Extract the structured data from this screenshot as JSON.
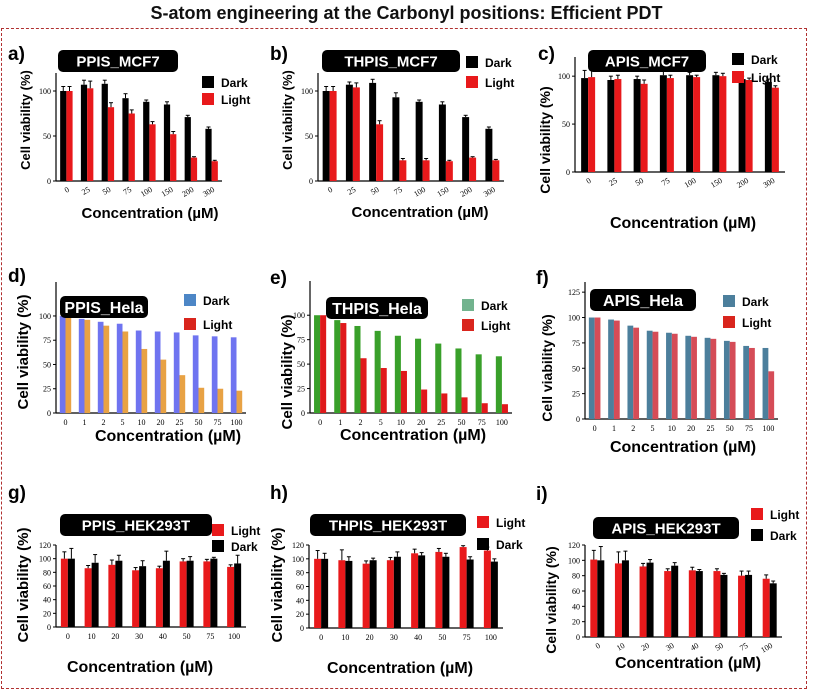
{
  "title": "S-atom engineering at the Carbonyl  positions: Efficient PDT",
  "chart_data": [
    {
      "id": "a",
      "type": "bar",
      "letter": "a)",
      "name": "PPIS_MCF7",
      "ylabel": "Cell viability (%)",
      "xlabel": "Concentration (µM)",
      "categories": [
        "0",
        "25",
        "50",
        "75",
        "100",
        "150",
        "200",
        "300"
      ],
      "yticks": [
        0,
        50,
        100
      ],
      "ylim": [
        0,
        120
      ],
      "colors": [
        "#000000",
        "#e8191b"
      ],
      "error_bars": true,
      "series": [
        {
          "name": "Dark",
          "values": [
            100,
            107,
            108,
            92,
            88,
            85,
            71,
            58
          ],
          "errors": [
            5,
            5,
            4,
            5,
            2,
            3,
            2,
            2
          ]
        },
        {
          "name": "Light",
          "values": [
            100,
            103,
            82,
            75,
            63,
            52,
            26,
            22
          ],
          "errors": [
            5,
            8,
            5,
            4,
            3,
            3,
            1,
            1
          ]
        }
      ]
    },
    {
      "id": "b",
      "type": "bar",
      "letter": "b)",
      "name": "THPIS_MCF7",
      "ylabel": "Cell viability (%)",
      "xlabel": "Concentration (µM)",
      "categories": [
        "0",
        "25",
        "50",
        "75",
        "100",
        "150",
        "200",
        "300"
      ],
      "yticks": [
        0,
        50,
        100
      ],
      "ylim": [
        0,
        120
      ],
      "colors": [
        "#000000",
        "#e8191b"
      ],
      "error_bars": true,
      "series": [
        {
          "name": "Dark",
          "values": [
            100,
            107,
            109,
            93,
            88,
            85,
            71,
            58
          ],
          "errors": [
            5,
            3,
            4,
            5,
            2,
            3,
            2,
            2
          ]
        },
        {
          "name": "Light",
          "values": [
            100,
            104,
            63,
            23,
            23,
            22,
            26,
            23
          ],
          "errors": [
            5,
            5,
            4,
            2,
            2,
            1,
            1,
            1
          ]
        }
      ]
    },
    {
      "id": "c",
      "type": "bar",
      "letter": "c)",
      "name": "APIS_MCF7",
      "ylabel": "Cell viability (%)",
      "xlabel": "Concentration (µM)",
      "categories": [
        "0",
        "25",
        "50",
        "75",
        "100",
        "150",
        "200",
        "300"
      ],
      "yticks": [
        0,
        50,
        100
      ],
      "ylim": [
        0,
        120
      ],
      "colors": [
        "#000000",
        "#e8191b"
      ],
      "error_bars": true,
      "series": [
        {
          "name": "Dark",
          "values": [
            98,
            96,
            97,
            101,
            101,
            101,
            97,
            94
          ],
          "errors": [
            8,
            4,
            3,
            4,
            3,
            3,
            3,
            3
          ]
        },
        {
          "name": "Light",
          "values": [
            99,
            97,
            92,
            98,
            99,
            100,
            96,
            88
          ],
          "errors": [
            7,
            4,
            4,
            3,
            2,
            3,
            2,
            2
          ]
        }
      ]
    },
    {
      "id": "d",
      "type": "bar",
      "letter": "d)",
      "name": "PPIS_Hela",
      "ylabel": "Cell viability (%)",
      "xlabel": "Concentration (µM)",
      "categories": [
        "0",
        "1",
        "2",
        "5",
        "10",
        "20",
        "25",
        "50",
        "75",
        "100"
      ],
      "yticks": [
        0,
        25,
        50,
        75,
        100
      ],
      "ylim": [
        0,
        135
      ],
      "colors": [
        "#6f74f0",
        "#e8a244"
      ],
      "legend_colors": [
        "#4d86c6",
        "#d9251d"
      ],
      "error_bars": false,
      "series": [
        {
          "name": "Dark",
          "values": [
            100,
            97,
            94,
            92,
            85,
            84,
            83,
            80,
            79,
            78
          ]
        },
        {
          "name": "Light",
          "values": [
            100,
            96,
            90,
            84,
            66,
            55,
            39,
            26,
            25,
            23
          ]
        }
      ]
    },
    {
      "id": "e",
      "type": "bar",
      "letter": "e)",
      "name": "THPIS_Hela",
      "ylabel": "Cell viability (%)",
      "xlabel": "Concentration (µM)",
      "categories": [
        "0",
        "1",
        "2",
        "5",
        "10",
        "20",
        "25",
        "50",
        "75",
        "100"
      ],
      "yticks": [
        0,
        25,
        50,
        75,
        100
      ],
      "ylim": [
        0,
        135
      ],
      "colors": [
        "#39a02a",
        "#e0191b"
      ],
      "legend_colors": [
        "#72b38e",
        "#d9251d"
      ],
      "error_bars": false,
      "series": [
        {
          "name": "Dark",
          "values": [
            100,
            95,
            89,
            84,
            79,
            76,
            71,
            66,
            60,
            58
          ]
        },
        {
          "name": "Light",
          "values": [
            100,
            92,
            56,
            46,
            43,
            24,
            20,
            16,
            10,
            9
          ]
        }
      ]
    },
    {
      "id": "f",
      "type": "bar",
      "letter": "f)",
      "name": "APIS_Hela",
      "ylabel": "Cell viability (%)",
      "xlabel": "Concentration (µM)",
      "categories": [
        "0",
        "1",
        "2",
        "5",
        "10",
        "20",
        "25",
        "50",
        "75",
        "100"
      ],
      "yticks": [
        0,
        25,
        50,
        75,
        100,
        125
      ],
      "ylim": [
        0,
        135
      ],
      "colors": [
        "#4c7f9c",
        "#d54c57"
      ],
      "legend_colors": [
        "#4c7f9c",
        "#d9251d"
      ],
      "error_bars": false,
      "series": [
        {
          "name": "Dark",
          "values": [
            100,
            98,
            92,
            87,
            85,
            82,
            80,
            77,
            72,
            70
          ]
        },
        {
          "name": "Light",
          "values": [
            100,
            97,
            90,
            86,
            84,
            81,
            79,
            76,
            70,
            47
          ]
        }
      ]
    },
    {
      "id": "g",
      "type": "bar",
      "letter": "g)",
      "name": "PPIS_HEK293T",
      "ylabel": "Cell viability (%)",
      "xlabel": "Concentration (µM)",
      "categories": [
        "0",
        "10",
        "20",
        "30",
        "40",
        "50",
        "75",
        "100"
      ],
      "yticks": [
        0,
        20,
        40,
        60,
        80,
        100,
        120
      ],
      "ylim": [
        0,
        120
      ],
      "colors": [
        "#e8191b",
        "#000000"
      ],
      "error_bars": true,
      "series": [
        {
          "name": "Light",
          "values": [
            100,
            86,
            91,
            83,
            86,
            96,
            96,
            88
          ],
          "errors": [
            10,
            4,
            7,
            4,
            3,
            4,
            3,
            3
          ]
        },
        {
          "name": "Dark",
          "values": [
            100,
            94,
            97,
            89,
            97,
            97,
            100,
            93
          ],
          "errors": [
            15,
            12,
            8,
            8,
            14,
            6,
            2,
            12
          ]
        }
      ]
    },
    {
      "id": "h",
      "type": "bar",
      "letter": "h)",
      "name": "THPIS_HEK293T",
      "ylabel": "Cell viability (%)",
      "xlabel": "Concentration (µM)",
      "categories": [
        "0",
        "10",
        "20",
        "30",
        "40",
        "50",
        "75",
        "100"
      ],
      "yticks": [
        0,
        20,
        40,
        60,
        80,
        100,
        120
      ],
      "ylim": [
        0,
        120
      ],
      "colors": [
        "#e8191b",
        "#000000"
      ],
      "error_bars": true,
      "series": [
        {
          "name": "Light",
          "values": [
            100,
            98,
            93,
            98,
            108,
            110,
            117,
            112
          ],
          "errors": [
            12,
            15,
            4,
            4,
            6,
            5,
            2,
            5
          ]
        },
        {
          "name": "Dark",
          "values": [
            100,
            97,
            98,
            103,
            105,
            103,
            99,
            96
          ],
          "errors": [
            8,
            6,
            3,
            7,
            4,
            5,
            4,
            4
          ]
        }
      ]
    },
    {
      "id": "i",
      "type": "bar",
      "letter": "i)",
      "name": "APIS_HEK293T",
      "ylabel": "Cell viability (%)",
      "xlabel": "Concentration (µM)",
      "categories": [
        "0",
        "10",
        "20",
        "30",
        "40",
        "50",
        "75",
        "100"
      ],
      "yticks": [
        0,
        20,
        40,
        60,
        80,
        100,
        120
      ],
      "ylim": [
        0,
        120
      ],
      "colors": [
        "#e8191b",
        "#000000"
      ],
      "error_bars": true,
      "series": [
        {
          "name": "Light",
          "values": [
            101,
            96,
            92,
            86,
            87,
            86,
            80,
            76
          ],
          "errors": [
            12,
            15,
            4,
            3,
            4,
            3,
            6,
            5
          ]
        },
        {
          "name": "Dark",
          "values": [
            100,
            100,
            97,
            93,
            86,
            81,
            81,
            70
          ],
          "errors": [
            18,
            12,
            4,
            4,
            2,
            2,
            5,
            3
          ]
        }
      ]
    }
  ]
}
